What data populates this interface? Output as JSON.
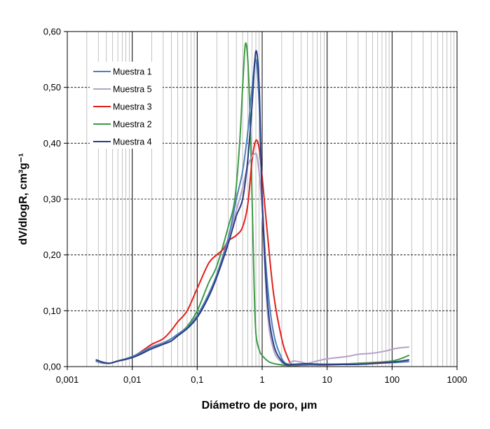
{
  "chart_data": {
    "type": "line",
    "xlabel": "Diámetro de poro, µm",
    "ylabel": "dV/dlogR, cm³g⁻¹",
    "xscale": "log",
    "xlim": [
      0.001,
      1000
    ],
    "ylim": [
      0,
      0.6
    ],
    "x_ticks": [
      "0,001",
      "0,01",
      "0,1",
      "1",
      "10",
      "100",
      "1000"
    ],
    "y_ticks": [
      "0,00",
      "0,10",
      "0,20",
      "0,30",
      "0,40",
      "0,50",
      "0,60"
    ],
    "grid": true,
    "legend_position": "top-left",
    "series": [
      {
        "name": "Muestra 1",
        "color": "#4f81bd",
        "points": [
          [
            0.0028,
            0.01
          ],
          [
            0.0035,
            0.007
          ],
          [
            0.0045,
            0.006
          ],
          [
            0.006,
            0.01
          ],
          [
            0.008,
            0.014
          ],
          [
            0.011,
            0.02
          ],
          [
            0.015,
            0.028
          ],
          [
            0.02,
            0.035
          ],
          [
            0.03,
            0.042
          ],
          [
            0.04,
            0.05
          ],
          [
            0.05,
            0.058
          ],
          [
            0.07,
            0.07
          ],
          [
            0.1,
            0.092
          ],
          [
            0.15,
            0.13
          ],
          [
            0.2,
            0.165
          ],
          [
            0.3,
            0.23
          ],
          [
            0.4,
            0.3
          ],
          [
            0.5,
            0.35
          ],
          [
            0.6,
            0.42
          ],
          [
            0.7,
            0.5
          ],
          [
            0.8,
            0.55
          ],
          [
            0.9,
            0.47
          ],
          [
            1.0,
            0.3
          ],
          [
            1.2,
            0.15
          ],
          [
            1.5,
            0.06
          ],
          [
            2.0,
            0.015
          ],
          [
            2.5,
            0.004
          ],
          [
            3.0,
            0.003
          ],
          [
            5,
            0.003
          ],
          [
            10,
            0.004
          ],
          [
            30,
            0.005
          ],
          [
            100,
            0.007
          ],
          [
            180,
            0.009
          ]
        ]
      },
      {
        "name": "Muestra 5",
        "color": "#b3a2c7",
        "points": [
          [
            0.0028,
            0.009
          ],
          [
            0.0035,
            0.006
          ],
          [
            0.0045,
            0.006
          ],
          [
            0.006,
            0.01
          ],
          [
            0.008,
            0.014
          ],
          [
            0.011,
            0.02
          ],
          [
            0.015,
            0.028
          ],
          [
            0.02,
            0.036
          ],
          [
            0.03,
            0.043
          ],
          [
            0.04,
            0.05
          ],
          [
            0.05,
            0.058
          ],
          [
            0.07,
            0.07
          ],
          [
            0.1,
            0.09
          ],
          [
            0.15,
            0.13
          ],
          [
            0.2,
            0.165
          ],
          [
            0.3,
            0.23
          ],
          [
            0.4,
            0.28
          ],
          [
            0.5,
            0.32
          ],
          [
            0.6,
            0.36
          ],
          [
            0.75,
            0.38
          ],
          [
            0.85,
            0.37
          ],
          [
            1.0,
            0.28
          ],
          [
            1.2,
            0.1
          ],
          [
            1.5,
            0.03
          ],
          [
            2.0,
            0.008
          ],
          [
            2.5,
            0.005
          ],
          [
            3.0,
            0.01
          ],
          [
            4,
            0.008
          ],
          [
            5,
            0.006
          ],
          [
            7,
            0.01
          ],
          [
            10,
            0.014
          ],
          [
            20,
            0.018
          ],
          [
            30,
            0.022
          ],
          [
            50,
            0.024
          ],
          [
            80,
            0.028
          ],
          [
            120,
            0.033
          ],
          [
            180,
            0.035
          ]
        ]
      },
      {
        "name": "Muestra 3",
        "color": "#e0201b",
        "points": [
          [
            0.0028,
            0.01
          ],
          [
            0.0035,
            0.007
          ],
          [
            0.0045,
            0.006
          ],
          [
            0.006,
            0.01
          ],
          [
            0.008,
            0.014
          ],
          [
            0.011,
            0.02
          ],
          [
            0.015,
            0.03
          ],
          [
            0.02,
            0.04
          ],
          [
            0.03,
            0.05
          ],
          [
            0.04,
            0.065
          ],
          [
            0.05,
            0.08
          ],
          [
            0.07,
            0.1
          ],
          [
            0.1,
            0.14
          ],
          [
            0.15,
            0.185
          ],
          [
            0.2,
            0.2
          ],
          [
            0.25,
            0.21
          ],
          [
            0.3,
            0.225
          ],
          [
            0.4,
            0.235
          ],
          [
            0.5,
            0.25
          ],
          [
            0.6,
            0.29
          ],
          [
            0.7,
            0.37
          ],
          [
            0.8,
            0.405
          ],
          [
            0.9,
            0.39
          ],
          [
            1.0,
            0.34
          ],
          [
            1.2,
            0.24
          ],
          [
            1.5,
            0.13
          ],
          [
            2.0,
            0.05
          ],
          [
            2.5,
            0.015
          ],
          [
            3.0,
            0.003
          ],
          [
            5,
            0.003
          ],
          [
            10,
            0.003
          ],
          [
            30,
            0.005
          ],
          [
            100,
            0.008
          ],
          [
            180,
            0.012
          ]
        ]
      },
      {
        "name": "Muestra 2",
        "color": "#3d9a45",
        "points": [
          [
            0.0028,
            0.009
          ],
          [
            0.0035,
            0.006
          ],
          [
            0.0045,
            0.006
          ],
          [
            0.006,
            0.01
          ],
          [
            0.008,
            0.014
          ],
          [
            0.011,
            0.018
          ],
          [
            0.015,
            0.025
          ],
          [
            0.02,
            0.035
          ],
          [
            0.03,
            0.042
          ],
          [
            0.04,
            0.05
          ],
          [
            0.05,
            0.058
          ],
          [
            0.07,
            0.072
          ],
          [
            0.1,
            0.1
          ],
          [
            0.15,
            0.15
          ],
          [
            0.2,
            0.18
          ],
          [
            0.3,
            0.25
          ],
          [
            0.38,
            0.3
          ],
          [
            0.45,
            0.4
          ],
          [
            0.5,
            0.5
          ],
          [
            0.55,
            0.577
          ],
          [
            0.6,
            0.55
          ],
          [
            0.65,
            0.45
          ],
          [
            0.7,
            0.3
          ],
          [
            0.75,
            0.15
          ],
          [
            0.8,
            0.06
          ],
          [
            0.9,
            0.03
          ],
          [
            1.0,
            0.02
          ],
          [
            1.3,
            0.008
          ],
          [
            2.0,
            0.003
          ],
          [
            3.0,
            0.002
          ],
          [
            5,
            0.003
          ],
          [
            10,
            0.004
          ],
          [
            30,
            0.006
          ],
          [
            100,
            0.01
          ],
          [
            180,
            0.02
          ]
        ]
      },
      {
        "name": "Muestra 4",
        "color": "#2a3d80",
        "points": [
          [
            0.0028,
            0.012
          ],
          [
            0.0035,
            0.008
          ],
          [
            0.0045,
            0.006
          ],
          [
            0.006,
            0.01
          ],
          [
            0.008,
            0.013
          ],
          [
            0.011,
            0.018
          ],
          [
            0.015,
            0.025
          ],
          [
            0.02,
            0.032
          ],
          [
            0.03,
            0.04
          ],
          [
            0.04,
            0.046
          ],
          [
            0.05,
            0.055
          ],
          [
            0.07,
            0.068
          ],
          [
            0.1,
            0.088
          ],
          [
            0.15,
            0.125
          ],
          [
            0.2,
            0.16
          ],
          [
            0.3,
            0.22
          ],
          [
            0.4,
            0.27
          ],
          [
            0.5,
            0.3
          ],
          [
            0.6,
            0.37
          ],
          [
            0.7,
            0.47
          ],
          [
            0.8,
            0.565
          ],
          [
            0.9,
            0.5
          ],
          [
            1.0,
            0.3
          ],
          [
            1.2,
            0.12
          ],
          [
            1.5,
            0.04
          ],
          [
            2.0,
            0.01
          ],
          [
            2.5,
            0.003
          ],
          [
            3.0,
            0.004
          ],
          [
            5,
            0.005
          ],
          [
            10,
            0.004
          ],
          [
            30,
            0.004
          ],
          [
            100,
            0.008
          ],
          [
            180,
            0.012
          ]
        ]
      }
    ]
  }
}
